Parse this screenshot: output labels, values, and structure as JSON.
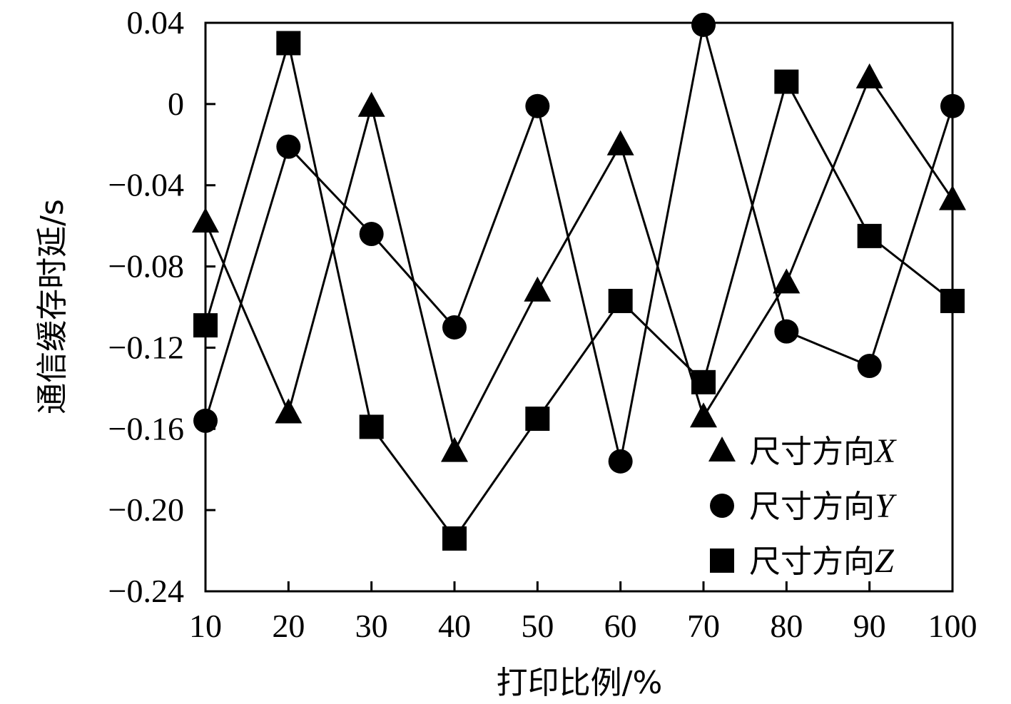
{
  "chart_data": {
    "type": "line",
    "xlabel": "打印比例/%",
    "ylabel": "通信缓存时延/s",
    "x": [
      10,
      20,
      30,
      40,
      50,
      60,
      70,
      80,
      90,
      100
    ],
    "xlim": [
      10,
      100
    ],
    "ylim": [
      -0.24,
      0.04
    ],
    "xticks": [
      "10",
      "20",
      "30",
      "40",
      "50",
      "60",
      "70",
      "80",
      "90",
      "100"
    ],
    "yticks": [
      "0.04",
      "0",
      "−0.04",
      "−0.08",
      "−0.12",
      "−0.16",
      "−0.20",
      "−0.24"
    ],
    "ytick_values": [
      0.04,
      0,
      -0.04,
      -0.08,
      -0.12,
      -0.16,
      -0.2,
      -0.24
    ],
    "grid": false,
    "legend_position": "bottom-right",
    "series": [
      {
        "name": "尺寸方向",
        "var": "X",
        "marker": "triangle",
        "values": [
          -0.058,
          -0.152,
          -0.001,
          -0.171,
          -0.092,
          -0.02,
          -0.154,
          -0.088,
          0.013,
          -0.047
        ]
      },
      {
        "name": "尺寸方向",
        "var": "Y",
        "marker": "circle",
        "values": [
          -0.156,
          -0.021,
          -0.064,
          -0.11,
          -0.001,
          -0.176,
          0.039,
          -0.112,
          -0.129,
          -0.001
        ]
      },
      {
        "name": "尺寸方向",
        "var": "Z",
        "marker": "square",
        "values": [
          -0.109,
          0.03,
          -0.159,
          -0.214,
          -0.155,
          -0.097,
          -0.137,
          0.011,
          -0.065,
          -0.097
        ]
      }
    ],
    "colors": {
      "line": "#000000",
      "marker": "#000000",
      "background": "#ffffff"
    }
  }
}
